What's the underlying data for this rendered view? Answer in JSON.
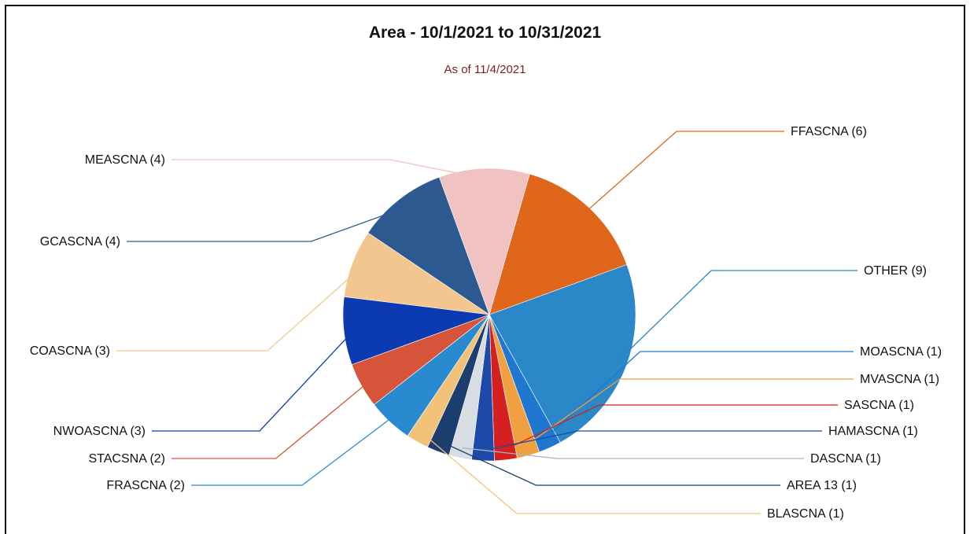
{
  "chart_data": {
    "type": "pie",
    "title": "Area - 10/1/2021 to 10/31/2021",
    "subtitle": "As of 11/4/2021",
    "slices": [
      {
        "label": "FFASCNA (6)",
        "value": 6,
        "color": "#e0661c"
      },
      {
        "label": "OTHER (9)",
        "value": 9,
        "color": "#2a87c8"
      },
      {
        "label": "MOASCNA (1)",
        "value": 1,
        "color": "#1f77d0"
      },
      {
        "label": "MVASCNA (1)",
        "value": 1,
        "color": "#f0a040"
      },
      {
        "label": "SASCNA (1)",
        "value": 1,
        "color": "#d42020"
      },
      {
        "label": "HAMASCNA (1)",
        "value": 1,
        "color": "#1d4aa8"
      },
      {
        "label": "DASCNA (1)",
        "value": 1,
        "color": "#d8dde4"
      },
      {
        "label": "AREA 13 (1)",
        "value": 1,
        "color": "#1c3e6e"
      },
      {
        "label": "BLASCNA (1)",
        "value": 1,
        "color": "#f2c27a"
      },
      {
        "label": "FRASCNA (2)",
        "value": 2,
        "color": "#2a8ad0"
      },
      {
        "label": "STACSNA (2)",
        "value": 2,
        "color": "#d6543a"
      },
      {
        "label": "NWOASCNA (3)",
        "value": 3,
        "color": "#0c3ab0"
      },
      {
        "label": "COASCNA (3)",
        "value": 3,
        "color": "#f3c690"
      },
      {
        "label": "GCASCNA (4)",
        "value": 4,
        "color": "#2c5a90"
      },
      {
        "label": "MEASCNA (4)",
        "value": 4,
        "color": "#f0c2c2"
      }
    ],
    "legend": "leader-line labels"
  }
}
